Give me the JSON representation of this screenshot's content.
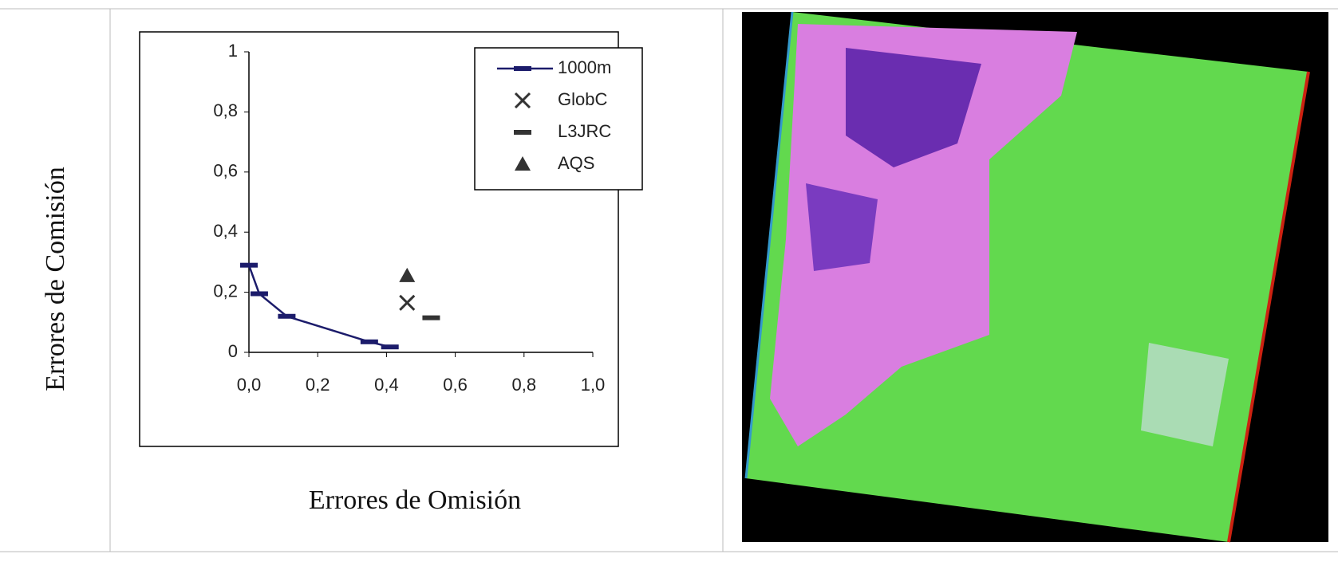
{
  "chart_data": {
    "type": "line",
    "xlabel": "Errores de Omisión",
    "ylabel": "Errores de Comisión",
    "xlim": [
      0,
      1
    ],
    "ylim": [
      0,
      1
    ],
    "xticks": [
      {
        "value": 0,
        "label": "0,0"
      },
      {
        "value": 0.2,
        "label": "0,2"
      },
      {
        "value": 0.4,
        "label": "0,4"
      },
      {
        "value": 0.6,
        "label": "0,6"
      },
      {
        "value": 0.8,
        "label": "0,8"
      },
      {
        "value": 1,
        "label": "1,0"
      }
    ],
    "yticks": [
      0,
      {
        "value": 0.2,
        "label": "0,2"
      },
      {
        "value": 0.4,
        "label": "0,4"
      },
      {
        "value": 0.6,
        "label": "0,6"
      },
      {
        "value": 0.8,
        "label": "0,8"
      },
      1
    ],
    "legend": "upper right",
    "series": [
      {
        "name": "1000m",
        "color": "#1c1c6b",
        "marker": "dash",
        "line": true,
        "x": [
          0,
          0.03,
          0.11,
          0.35,
          0.41
        ],
        "values": [
          0.29,
          0.195,
          0.12,
          0.035,
          0.018
        ]
      },
      {
        "name": "GlobC",
        "color": "#333333",
        "marker": "x",
        "line": false,
        "x": [
          0.46
        ],
        "values": [
          0.165
        ]
      },
      {
        "name": "L3JRC",
        "color": "#333333",
        "marker": "dash",
        "line": false,
        "x": [
          0.53
        ],
        "values": [
          0.115
        ]
      },
      {
        "name": "AQS",
        "color": "#333333",
        "marker": "triangle",
        "line": false,
        "x": [
          0.46
        ],
        "values": [
          0.255
        ]
      }
    ]
  }
}
